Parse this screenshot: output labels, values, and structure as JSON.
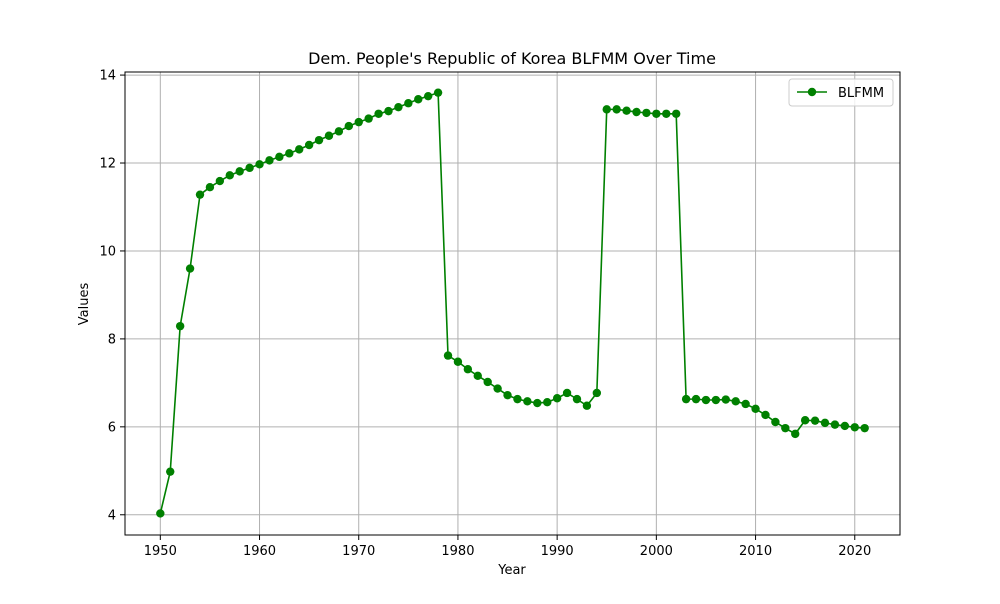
{
  "chart_data": {
    "type": "line",
    "title": "Dem. People's Republic of Korea BLFMM Over Time",
    "xlabel": "Year",
    "ylabel": "Values",
    "xlim": [
      1946.44,
      2024.56
    ],
    "ylim": [
      3.54,
      14.07
    ],
    "xticks": [
      1950,
      1960,
      1970,
      1980,
      1990,
      2000,
      2010,
      2020
    ],
    "yticks": [
      4,
      6,
      8,
      10,
      12,
      14
    ],
    "grid": true,
    "legend_position": "top-right",
    "series": [
      {
        "name": "BLFMM",
        "color": "#008000",
        "marker": "circle",
        "x": [
          1950,
          1951,
          1952,
          1953,
          1954,
          1955,
          1956,
          1957,
          1958,
          1959,
          1960,
          1961,
          1962,
          1963,
          1964,
          1965,
          1966,
          1967,
          1968,
          1969,
          1970,
          1971,
          1972,
          1973,
          1974,
          1975,
          1976,
          1977,
          1978,
          1979,
          1980,
          1981,
          1982,
          1983,
          1984,
          1985,
          1986,
          1987,
          1988,
          1989,
          1990,
          1991,
          1992,
          1993,
          1994,
          1995,
          1996,
          1997,
          1998,
          1999,
          2000,
          2001,
          2002,
          2003,
          2004,
          2005,
          2006,
          2007,
          2008,
          2009,
          2010,
          2011,
          2012,
          2013,
          2014,
          2015,
          2016,
          2017,
          2018,
          2019,
          2020,
          2021
        ],
        "values": [
          4.03,
          4.98,
          8.29,
          9.6,
          11.28,
          11.45,
          11.59,
          11.72,
          11.81,
          11.89,
          11.97,
          12.06,
          12.14,
          12.22,
          12.31,
          12.41,
          12.52,
          12.62,
          12.72,
          12.84,
          12.93,
          13.01,
          13.12,
          13.18,
          13.27,
          13.36,
          13.45,
          13.52,
          13.6,
          7.62,
          7.48,
          7.31,
          7.16,
          7.02,
          6.87,
          6.72,
          6.63,
          6.58,
          6.54,
          6.56,
          6.65,
          6.77,
          6.63,
          6.48,
          6.77,
          13.22,
          13.22,
          13.19,
          13.16,
          13.14,
          13.12,
          13.12,
          13.12,
          6.63,
          6.63,
          6.61,
          6.61,
          6.62,
          6.58,
          6.52,
          6.41,
          6.27,
          6.11,
          5.97,
          5.84,
          6.15,
          6.14,
          6.09,
          6.05,
          6.02,
          5.99,
          5.97
        ]
      }
    ]
  }
}
